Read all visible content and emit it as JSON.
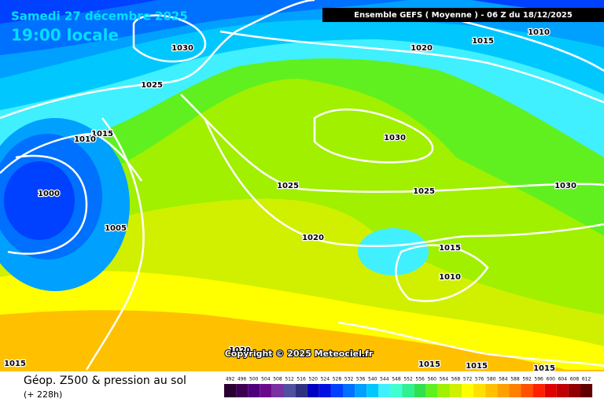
{
  "header": {
    "date": "Samedi 27 décembre 2025",
    "time": "19:00 locale",
    "run": "Ensemble GEFS  ( Moyenne )  -  06 Z du 18/12/2025"
  },
  "copyright": "Copyright © 2025 Meteociel.fr",
  "footer": {
    "title": "Géop. Z500 & pression au sol",
    "lead": "(+ 228h)"
  },
  "isobar_labels": [
    "1030",
    "1025",
    "1015",
    "1010",
    "1000",
    "1005",
    "1025",
    "1020",
    "1030",
    "1025",
    "1020",
    "1015",
    "1010",
    "1030",
    "1015",
    "1010",
    "1020",
    "1015",
    "1015",
    "1015",
    "1015"
  ],
  "scale": {
    "values": [
      492,
      496,
      500,
      504,
      508,
      512,
      516,
      520,
      524,
      528,
      532,
      536,
      540,
      544,
      548,
      552,
      556,
      560,
      564,
      568,
      572,
      576,
      580,
      584,
      588,
      592,
      596,
      600,
      604,
      608,
      612
    ],
    "colors": [
      "#2a0030",
      "#3d0050",
      "#50007a",
      "#6a0a8a",
      "#7a30a0",
      "#5050a0",
      "#303080",
      "#0000c0",
      "#0010e0",
      "#0040ff",
      "#0070ff",
      "#00a0ff",
      "#00c8ff",
      "#40f0ff",
      "#40ffd0",
      "#30f090",
      "#30e050",
      "#60f020",
      "#a0f000",
      "#d0f000",
      "#ffff00",
      "#ffe000",
      "#ffc000",
      "#ffa000",
      "#ff8000",
      "#ff5000",
      "#ff2000",
      "#e00000",
      "#c00000",
      "#900000",
      "#600000"
    ]
  }
}
